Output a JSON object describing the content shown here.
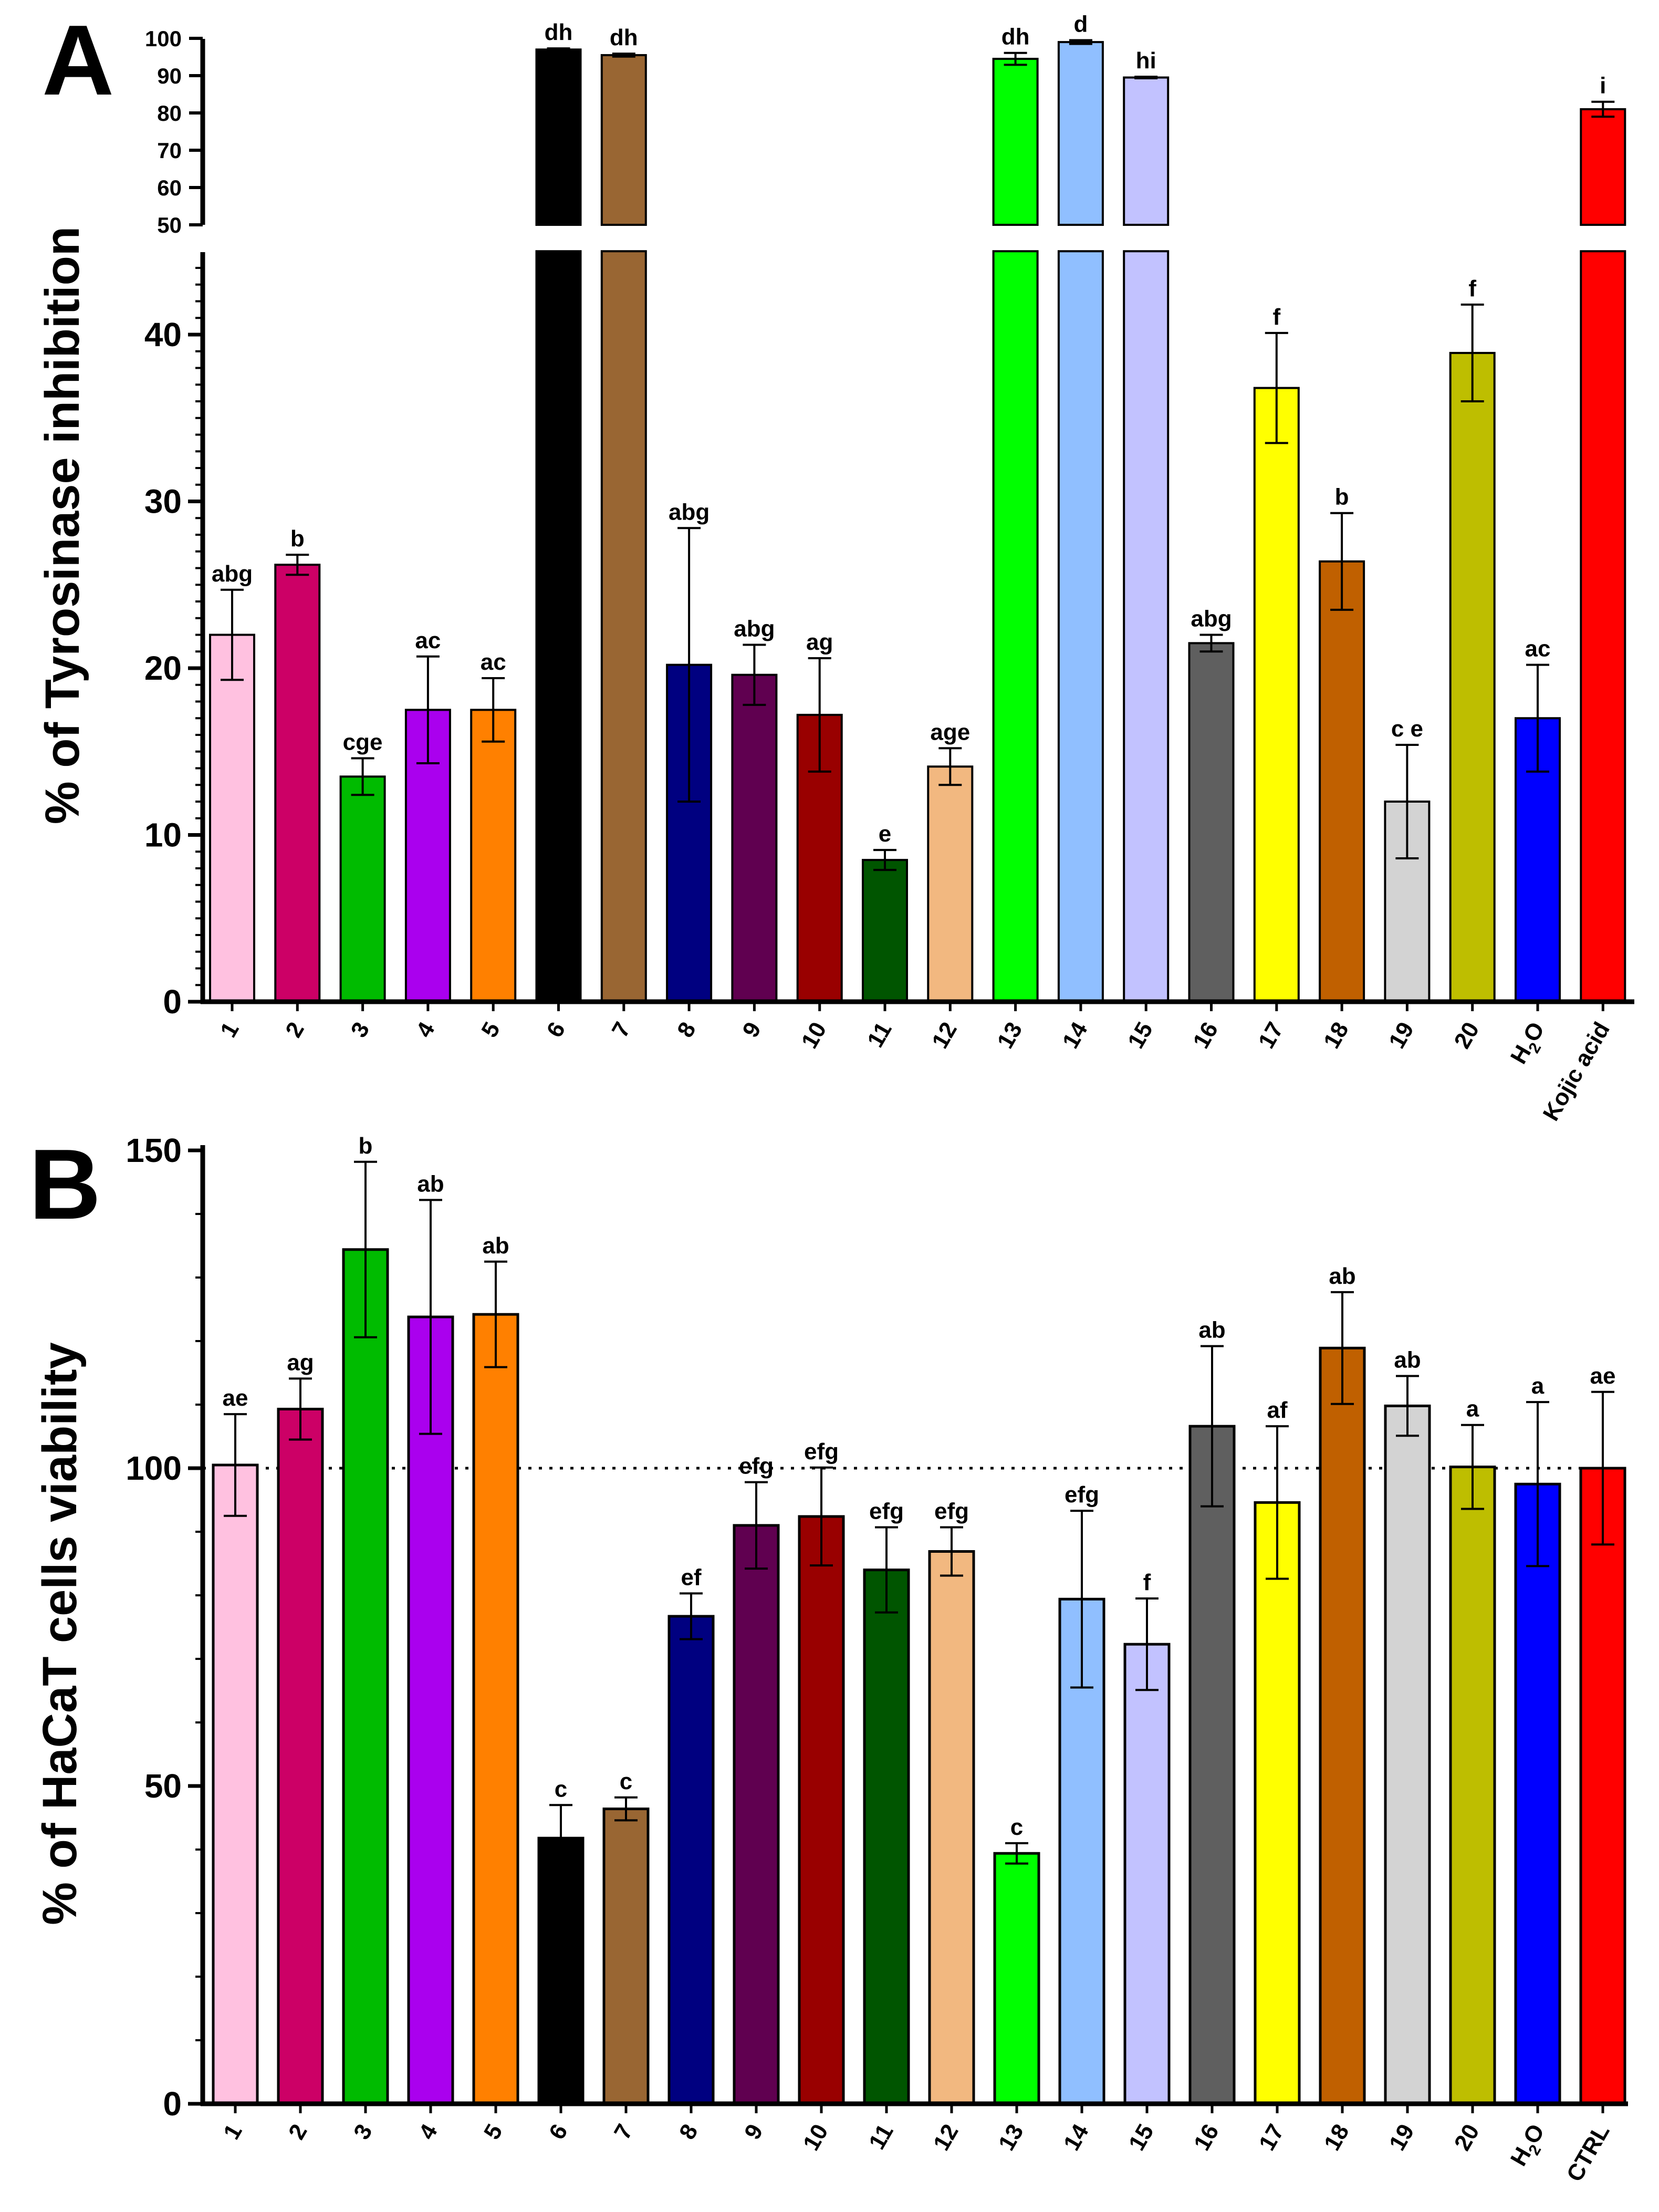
{
  "chart_data": [
    {
      "type": "bar",
      "panel": "A",
      "ylabel": "% of Tyrosinase inhibition",
      "axis_break": {
        "lower_range": [
          0,
          45
        ],
        "upper_range": [
          50,
          100
        ]
      },
      "yticks_lower": [
        0,
        10,
        20,
        30,
        40
      ],
      "yticks_upper": [
        50,
        60,
        70,
        80,
        90,
        100
      ],
      "categories": [
        "1",
        "2",
        "3",
        "4",
        "5",
        "6",
        "7",
        "8",
        "9",
        "10",
        "11",
        "12",
        "13",
        "14",
        "15",
        "16",
        "17",
        "18",
        "19",
        "20",
        "H2O",
        "Kojic acid"
      ],
      "category_labels": [
        {
          "text": "1"
        },
        {
          "text": "2"
        },
        {
          "text": "3"
        },
        {
          "text": "4"
        },
        {
          "text": "5"
        },
        {
          "text": "6"
        },
        {
          "text": "7"
        },
        {
          "text": "8"
        },
        {
          "text": "9"
        },
        {
          "text": "10"
        },
        {
          "text": "11"
        },
        {
          "text": "12"
        },
        {
          "text": "13"
        },
        {
          "text": "14"
        },
        {
          "text": "15"
        },
        {
          "text": "16"
        },
        {
          "text": "17"
        },
        {
          "text": "18"
        },
        {
          "text": "19"
        },
        {
          "text": "20"
        },
        {
          "text": "H",
          "sub": "2",
          "after": "O"
        },
        {
          "text": "Kojic acid"
        }
      ],
      "values": [
        22.0,
        26.2,
        13.5,
        17.5,
        17.5,
        97.0,
        95.5,
        20.2,
        19.6,
        17.2,
        8.5,
        14.1,
        94.5,
        99.0,
        89.5,
        21.5,
        36.8,
        26.4,
        12.0,
        38.9,
        17.0,
        81.0
      ],
      "errors": [
        2.7,
        0.6,
        1.1,
        3.2,
        1.9,
        0.3,
        0.4,
        8.2,
        1.8,
        3.4,
        0.6,
        1.1,
        1.6,
        0.5,
        0.2,
        0.5,
        3.3,
        2.9,
        3.4,
        2.9,
        3.2,
        2.0
      ],
      "significance": [
        "abg",
        "b",
        "cge",
        "ac",
        "ac",
        "dh",
        "dh",
        "abg",
        "abg",
        "ag",
        "e",
        "age",
        "dh",
        "d",
        "hi",
        "abg",
        "f",
        "b",
        "c e",
        "f",
        "ac",
        "i"
      ]
    },
    {
      "type": "bar",
      "panel": "B",
      "ylabel": "% of HaCaT cells viability",
      "ylim": [
        0,
        150
      ],
      "yticks": [
        0,
        50,
        100,
        150
      ],
      "reference_line": 100,
      "categories": [
        "1",
        "2",
        "3",
        "4",
        "5",
        "6",
        "7",
        "8",
        "9",
        "10",
        "11",
        "12",
        "13",
        "14",
        "15",
        "16",
        "17",
        "18",
        "19",
        "20",
        "H2O",
        "CTRL"
      ],
      "category_labels": [
        {
          "text": "1"
        },
        {
          "text": "2"
        },
        {
          "text": "3"
        },
        {
          "text": "4"
        },
        {
          "text": "5"
        },
        {
          "text": "6"
        },
        {
          "text": "7"
        },
        {
          "text": "8"
        },
        {
          "text": "9"
        },
        {
          "text": "10"
        },
        {
          "text": "11"
        },
        {
          "text": "12"
        },
        {
          "text": "13"
        },
        {
          "text": "14"
        },
        {
          "text": "15"
        },
        {
          "text": "16"
        },
        {
          "text": "17"
        },
        {
          "text": "18"
        },
        {
          "text": "19"
        },
        {
          "text": "20"
        },
        {
          "text": "H",
          "sub": "2",
          "after": "O"
        },
        {
          "text": "CTRL"
        }
      ],
      "values": [
        100.5,
        109.3,
        134.4,
        123.8,
        124.2,
        41.8,
        46.4,
        76.7,
        91.0,
        92.4,
        84.0,
        86.9,
        39.4,
        79.4,
        72.3,
        106.6,
        94.6,
        118.9,
        109.8,
        100.2,
        97.5,
        100.0
      ],
      "errors": [
        8.0,
        4.8,
        13.8,
        18.4,
        8.3,
        5.2,
        1.8,
        3.6,
        6.8,
        7.7,
        6.7,
        3.8,
        1.6,
        13.9,
        7.2,
        12.6,
        12.0,
        8.8,
        4.7,
        6.6,
        12.9,
        12.0
      ],
      "significance": [
        "ae",
        "ag",
        "b",
        "ab",
        "ab",
        "c",
        "c",
        "ef",
        "efg",
        "efg",
        "efg",
        "efg",
        "c",
        "efg",
        "f",
        "ab",
        "af",
        "ab",
        "ab",
        "a",
        "a",
        "ae"
      ]
    }
  ],
  "colors": [
    "#FFC1E0",
    "#CC0066",
    "#00BB00",
    "#AA00EE",
    "#FF8000",
    "#000000",
    "#996633",
    "#000080",
    "#600050",
    "#990000",
    "#005500",
    "#F2B880",
    "#00FF00",
    "#90BFFF",
    "#C2C2FF",
    "#5F5F5F",
    "#FFFF00",
    "#C06000",
    "#D3D3D3",
    "#BEBE00",
    "#0000FF",
    "#FF0000"
  ]
}
